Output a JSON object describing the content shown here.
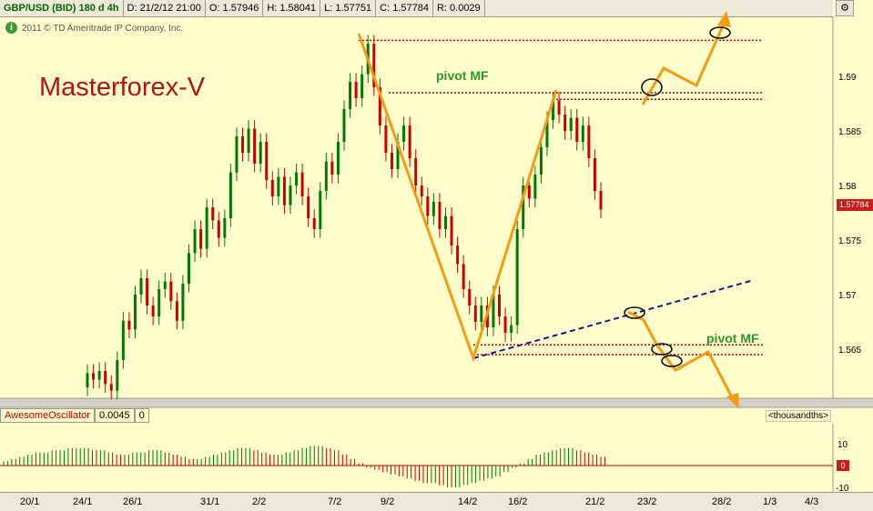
{
  "header": {
    "symbol": "GBP/USD (BID) 180 d 4h",
    "date": "D: 21/2/12 21:00",
    "open": "O: 1.57946",
    "high": "H: 1.58041",
    "low": "L: 1.57751",
    "close": "C: 1.57784",
    "range": "R: 0.0029"
  },
  "copyright": "2011 © TD Ameritrade IP Company, Inc.",
  "brand": "Masterforex-V",
  "annotations": {
    "pivot_top": "pivot MF",
    "pivot_bottom": "pivot MF"
  },
  "price_badge": "1.57784",
  "oscillator": {
    "name": "AwesomeOscillator",
    "value": "0.0045",
    "value2": "0",
    "units": "<thousandths>",
    "badge": "0",
    "ticks": [
      "10",
      "-10"
    ]
  },
  "colors": {
    "background": "#fffdcc",
    "up_candle": "#007a00",
    "down_candle": "#cc0000",
    "forecast": "#f39c12",
    "pivot_line": "#cc0000",
    "trendline": "#1a1a8c"
  },
  "chart_data": {
    "type": "candlestick",
    "y_ticks": [
      "1.59",
      "1.585",
      "1.58",
      "1.575",
      "1.57",
      "1.565"
    ],
    "ylim": [
      1.5605,
      1.5955
    ],
    "x_ticks": [
      "20/1",
      "24/1",
      "26/1",
      "31/1",
      "2/2",
      "7/2",
      "9/2",
      "14/2",
      "16/2",
      "21/2",
      "23/2",
      "28/2",
      "1/3",
      "4/3"
    ],
    "pivot_levels": [
      1.5933,
      1.5885,
      1.5879,
      1.5654,
      1.5645
    ],
    "price_path": [
      {
        "d": "20/1",
        "o": 1.5615,
        "c": 1.5628
      },
      {
        "d": "20/1",
        "o": 1.5628,
        "c": 1.5622
      },
      {
        "d": "24/1",
        "o": 1.5622,
        "c": 1.563
      },
      {
        "d": "24/1",
        "o": 1.563,
        "c": 1.5618
      },
      {
        "d": "24/1",
        "o": 1.5618,
        "c": 1.5612
      },
      {
        "d": "24/1",
        "o": 1.5612,
        "c": 1.564
      },
      {
        "d": "26/1",
        "o": 1.564,
        "c": 1.5676
      },
      {
        "d": "26/1",
        "o": 1.5676,
        "c": 1.5668
      },
      {
        "d": "26/1",
        "o": 1.5668,
        "c": 1.57
      },
      {
        "d": "26/1",
        "o": 1.57,
        "c": 1.5715
      },
      {
        "d": "26/1",
        "o": 1.5715,
        "c": 1.569
      },
      {
        "d": "26/1",
        "o": 1.569,
        "c": 1.568
      },
      {
        "d": "26/1",
        "o": 1.568,
        "c": 1.5705
      },
      {
        "d": "26/1",
        "o": 1.5705,
        "c": 1.5712
      },
      {
        "d": "26/1",
        "o": 1.5712,
        "c": 1.5694
      },
      {
        "d": "26/1",
        "o": 1.5694,
        "c": 1.5676
      },
      {
        "d": "31/1",
        "o": 1.5676,
        "c": 1.571
      },
      {
        "d": "31/1",
        "o": 1.571,
        "c": 1.5738
      },
      {
        "d": "31/1",
        "o": 1.5738,
        "c": 1.576
      },
      {
        "d": "31/1",
        "o": 1.576,
        "c": 1.5742
      },
      {
        "d": "31/1",
        "o": 1.5742,
        "c": 1.578
      },
      {
        "d": "31/1",
        "o": 1.578,
        "c": 1.5768
      },
      {
        "d": "31/1",
        "o": 1.5768,
        "c": 1.5752
      },
      {
        "d": "31/1",
        "o": 1.5752,
        "c": 1.577
      },
      {
        "d": "2/2",
        "o": 1.577,
        "c": 1.5812
      },
      {
        "d": "2/2",
        "o": 1.5812,
        "c": 1.5845
      },
      {
        "d": "2/2",
        "o": 1.5845,
        "c": 1.583
      },
      {
        "d": "2/2",
        "o": 1.583,
        "c": 1.5852
      },
      {
        "d": "2/2",
        "o": 1.5852,
        "c": 1.582
      },
      {
        "d": "2/2",
        "o": 1.582,
        "c": 1.584
      },
      {
        "d": "2/2",
        "o": 1.584,
        "c": 1.5805
      },
      {
        "d": "2/2",
        "o": 1.5805,
        "c": 1.579
      },
      {
        "d": "2/2",
        "o": 1.579,
        "c": 1.5808
      },
      {
        "d": "2/2",
        "o": 1.5808,
        "c": 1.5782
      },
      {
        "d": "2/2",
        "o": 1.5782,
        "c": 1.58
      },
      {
        "d": "2/2",
        "o": 1.58,
        "c": 1.5812
      },
      {
        "d": "2/2",
        "o": 1.5812,
        "c": 1.579
      },
      {
        "d": "2/2",
        "o": 1.579,
        "c": 1.577
      },
      {
        "d": "2/2",
        "o": 1.577,
        "c": 1.576
      },
      {
        "d": "2/2",
        "o": 1.576,
        "c": 1.5795
      },
      {
        "d": "2/2",
        "o": 1.5795,
        "c": 1.5822
      },
      {
        "d": "2/2",
        "o": 1.5822,
        "c": 1.581
      },
      {
        "d": "7/2",
        "o": 1.581,
        "c": 1.584
      },
      {
        "d": "7/2",
        "o": 1.584,
        "c": 1.587
      },
      {
        "d": "7/2",
        "o": 1.587,
        "c": 1.5895
      },
      {
        "d": "7/2",
        "o": 1.5895,
        "c": 1.588
      },
      {
        "d": "7/2",
        "o": 1.588,
        "c": 1.5902
      },
      {
        "d": "7/2",
        "o": 1.5902,
        "c": 1.593
      },
      {
        "d": "7/2",
        "o": 1.593,
        "c": 1.589
      },
      {
        "d": "7/2",
        "o": 1.589,
        "c": 1.5855
      },
      {
        "d": "9/2",
        "o": 1.5855,
        "c": 1.583
      },
      {
        "d": "9/2",
        "o": 1.583,
        "c": 1.5815
      },
      {
        "d": "9/2",
        "o": 1.5815,
        "c": 1.584
      },
      {
        "d": "9/2",
        "o": 1.584,
        "c": 1.5855
      },
      {
        "d": "9/2",
        "o": 1.5855,
        "c": 1.5825
      },
      {
        "d": "9/2",
        "o": 1.5825,
        "c": 1.58
      },
      {
        "d": "9/2",
        "o": 1.58,
        "c": 1.579
      },
      {
        "d": "9/2",
        "o": 1.579,
        "c": 1.5772
      },
      {
        "d": "9/2",
        "o": 1.5772,
        "c": 1.5785
      },
      {
        "d": "9/2",
        "o": 1.5785,
        "c": 1.576
      },
      {
        "d": "9/2",
        "o": 1.576,
        "c": 1.5772
      },
      {
        "d": "9/2",
        "o": 1.5772,
        "c": 1.5745
      },
      {
        "d": "14/2",
        "o": 1.5745,
        "c": 1.5728
      },
      {
        "d": "14/2",
        "o": 1.5728,
        "c": 1.5705
      },
      {
        "d": "14/2",
        "o": 1.5705,
        "c": 1.569
      },
      {
        "d": "14/2",
        "o": 1.569,
        "c": 1.5675
      },
      {
        "d": "14/2",
        "o": 1.5675,
        "c": 1.569
      },
      {
        "d": "14/2",
        "o": 1.569,
        "c": 1.567
      },
      {
        "d": "14/2",
        "o": 1.567,
        "c": 1.57
      },
      {
        "d": "14/2",
        "o": 1.57,
        "c": 1.568
      },
      {
        "d": "16/2",
        "o": 1.568,
        "c": 1.5665
      },
      {
        "d": "16/2",
        "o": 1.5665,
        "c": 1.5672
      },
      {
        "d": "16/2",
        "o": 1.5672,
        "c": 1.576
      },
      {
        "d": "16/2",
        "o": 1.576,
        "c": 1.58
      },
      {
        "d": "16/2",
        "o": 1.58,
        "c": 1.5788
      },
      {
        "d": "16/2",
        "o": 1.5788,
        "c": 1.581
      },
      {
        "d": "16/2",
        "o": 1.581,
        "c": 1.5835
      },
      {
        "d": "16/2",
        "o": 1.5835,
        "c": 1.586
      },
      {
        "d": "16/2",
        "o": 1.586,
        "c": 1.5878
      },
      {
        "d": "16/2",
        "o": 1.5878,
        "c": 1.5865
      },
      {
        "d": "21/2",
        "o": 1.5865,
        "c": 1.585
      },
      {
        "d": "21/2",
        "o": 1.585,
        "c": 1.5862
      },
      {
        "d": "21/2",
        "o": 1.5862,
        "c": 1.584
      },
      {
        "d": "21/2",
        "o": 1.584,
        "c": 1.5855
      },
      {
        "d": "21/2",
        "o": 1.5855,
        "c": 1.5825
      },
      {
        "d": "21/2",
        "o": 1.5825,
        "c": 1.5795
      },
      {
        "d": "21/2",
        "o": 1.5795,
        "c": 1.5778
      }
    ],
    "oscillator_values": [
      2,
      3,
      4,
      5,
      6,
      6,
      7,
      7,
      8,
      8,
      8,
      7,
      7,
      6,
      5,
      5,
      6,
      6,
      7,
      7,
      6,
      5,
      4,
      3,
      3,
      4,
      5,
      6,
      7,
      8,
      8,
      7,
      6,
      5,
      5,
      6,
      7,
      8,
      9,
      9,
      8,
      7,
      5,
      3,
      1,
      -1,
      -2,
      -3,
      -4,
      -5,
      -6,
      -7,
      -8,
      -8,
      -9,
      -10,
      -10,
      -9,
      -8,
      -7,
      -6,
      -5,
      -3,
      -1,
      1,
      3,
      5,
      6,
      7,
      8,
      8,
      7,
      6,
      5,
      4
    ]
  }
}
